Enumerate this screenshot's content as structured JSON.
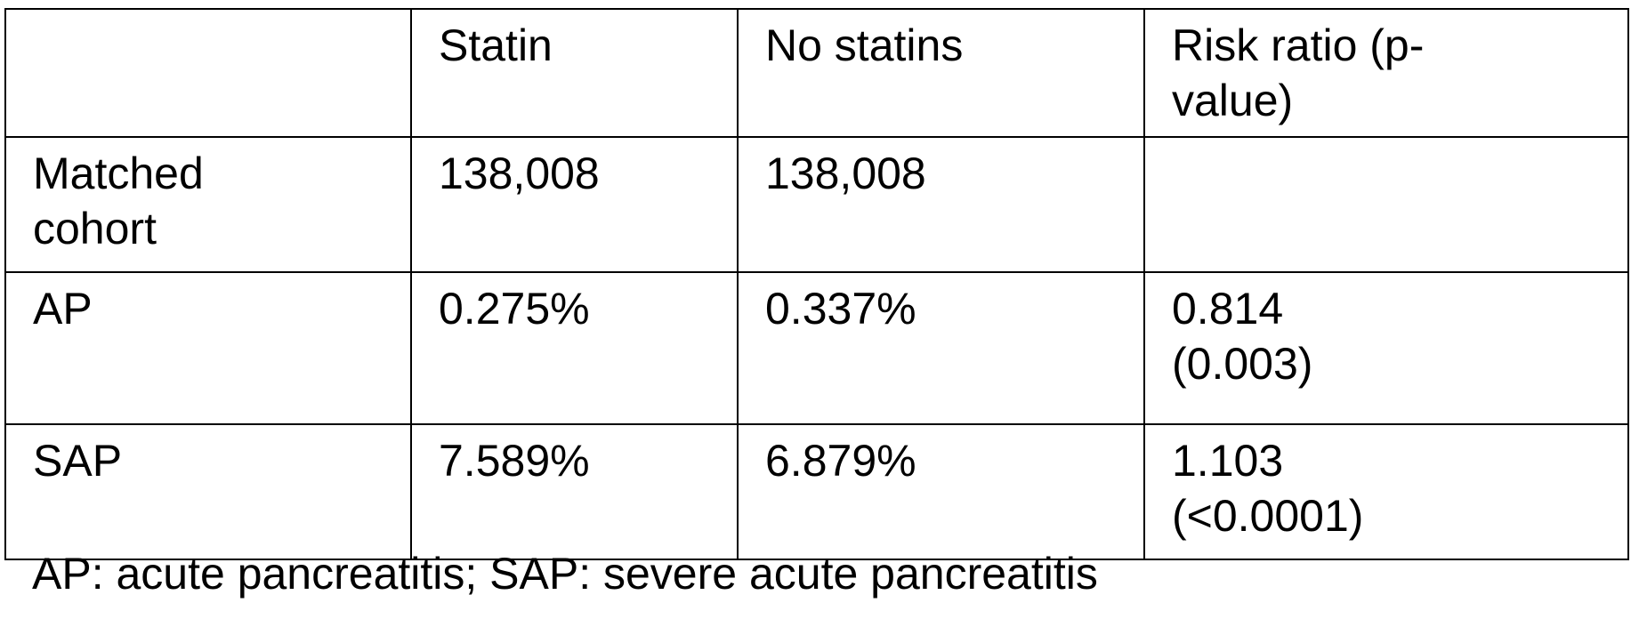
{
  "table": {
    "headers": [
      "",
      "Statin",
      "No statins",
      "Risk ratio (p-\nvalue)"
    ],
    "rows": [
      {
        "label": "Matched\ncohort",
        "statin": "138,008",
        "no_statins": "138,008",
        "risk_ratio": ""
      },
      {
        "label": "AP",
        "statin": "0.275%",
        "no_statins": "0.337%",
        "risk_ratio": "0.814\n(0.003)"
      },
      {
        "label": "SAP",
        "statin": "7.589%",
        "no_statins": "6.879%",
        "risk_ratio": "1.103\n(<0.0001)"
      }
    ]
  },
  "footnote": "AP: acute pancreatitis; SAP: severe acute pancreatitis"
}
